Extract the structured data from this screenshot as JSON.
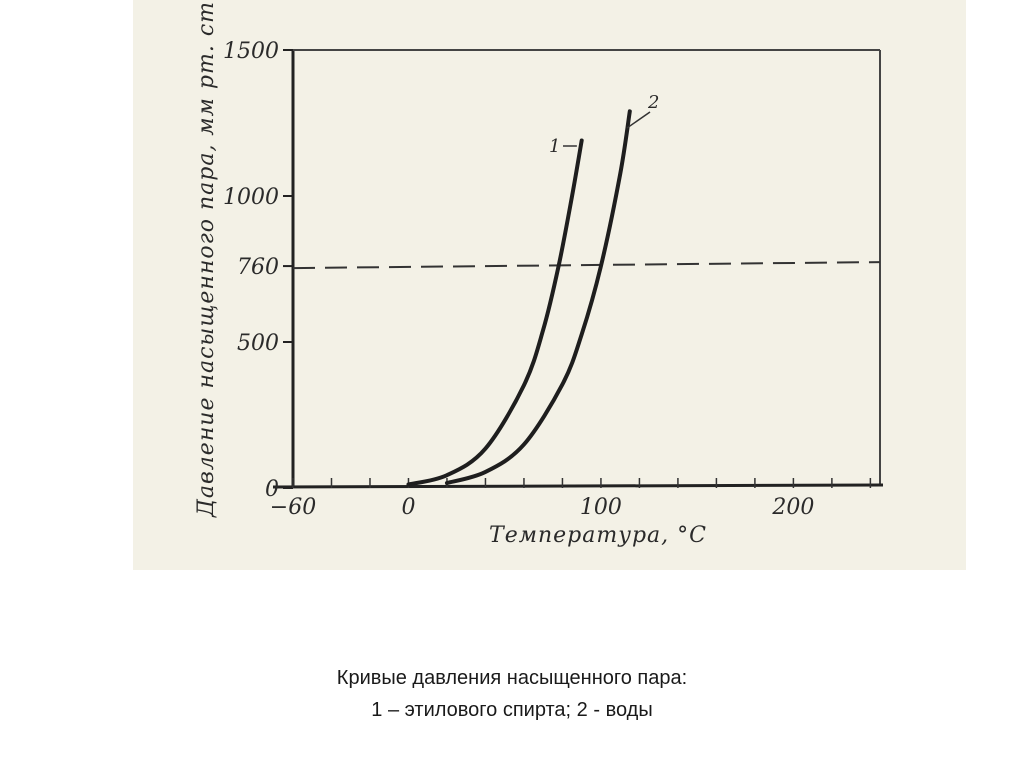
{
  "chart_data": {
    "type": "line",
    "xlabel": "Температура, °С",
    "ylabel": "Давление насыщенного пара, мм рт. ст.",
    "x_ticks": [
      "−60",
      "0",
      "100",
      "200"
    ],
    "x_tick_values": [
      -60,
      0,
      100,
      200
    ],
    "y_ticks": [
      "0",
      "500",
      "760",
      "1000",
      "1500"
    ],
    "y_tick_values": [
      0,
      500,
      760,
      1000,
      1500
    ],
    "xlim": [
      -60,
      245
    ],
    "ylim": [
      0,
      1500
    ],
    "grid": false,
    "reference_line": {
      "y": 760,
      "style": "dashed"
    },
    "series": [
      {
        "name": "1",
        "x": [
          0,
          20,
          40,
          60,
          70,
          78,
          85,
          90
        ],
        "y": [
          12,
          44,
          135,
          352,
          542,
          760,
          1000,
          1190
        ]
      },
      {
        "name": "2",
        "x": [
          20,
          40,
          60,
          80,
          90,
          100,
          110,
          115
        ],
        "y": [
          17,
          55,
          149,
          355,
          526,
          760,
          1075,
          1290
        ]
      }
    ]
  },
  "caption": {
    "line1": "Кривые давления насыщенного пара:",
    "line2": "1 – этилового спирта; 2 - воды"
  }
}
